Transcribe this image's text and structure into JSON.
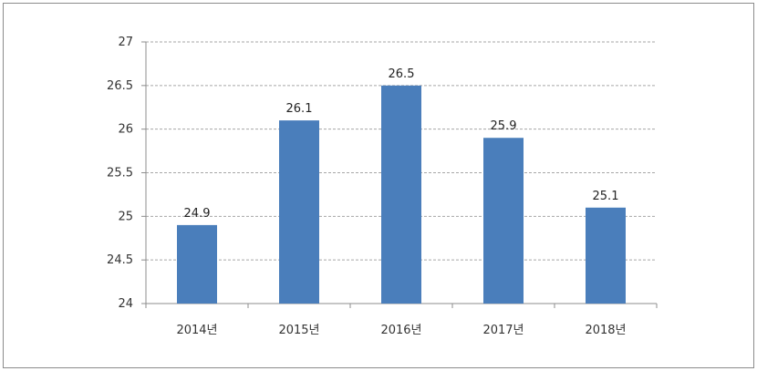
{
  "chart_data": {
    "type": "bar",
    "categories": [
      "2014년",
      "2015년",
      "2016년",
      "2017년",
      "2018년"
    ],
    "values": [
      24.9,
      26.1,
      26.5,
      25.9,
      25.1
    ],
    "data_labels": [
      "24.9",
      "26.1",
      "26.5",
      "25.9",
      "25.1"
    ],
    "y_ticks": [
      "24",
      "24.5",
      "25",
      "25.5",
      "26",
      "26.5",
      "27"
    ],
    "ylim": [
      24,
      27
    ],
    "grid": true,
    "legend": "none",
    "bar_color": "#4a7ebb",
    "grid_color": "#a6a6a6",
    "title": "",
    "xlabel": "",
    "ylabel": ""
  }
}
